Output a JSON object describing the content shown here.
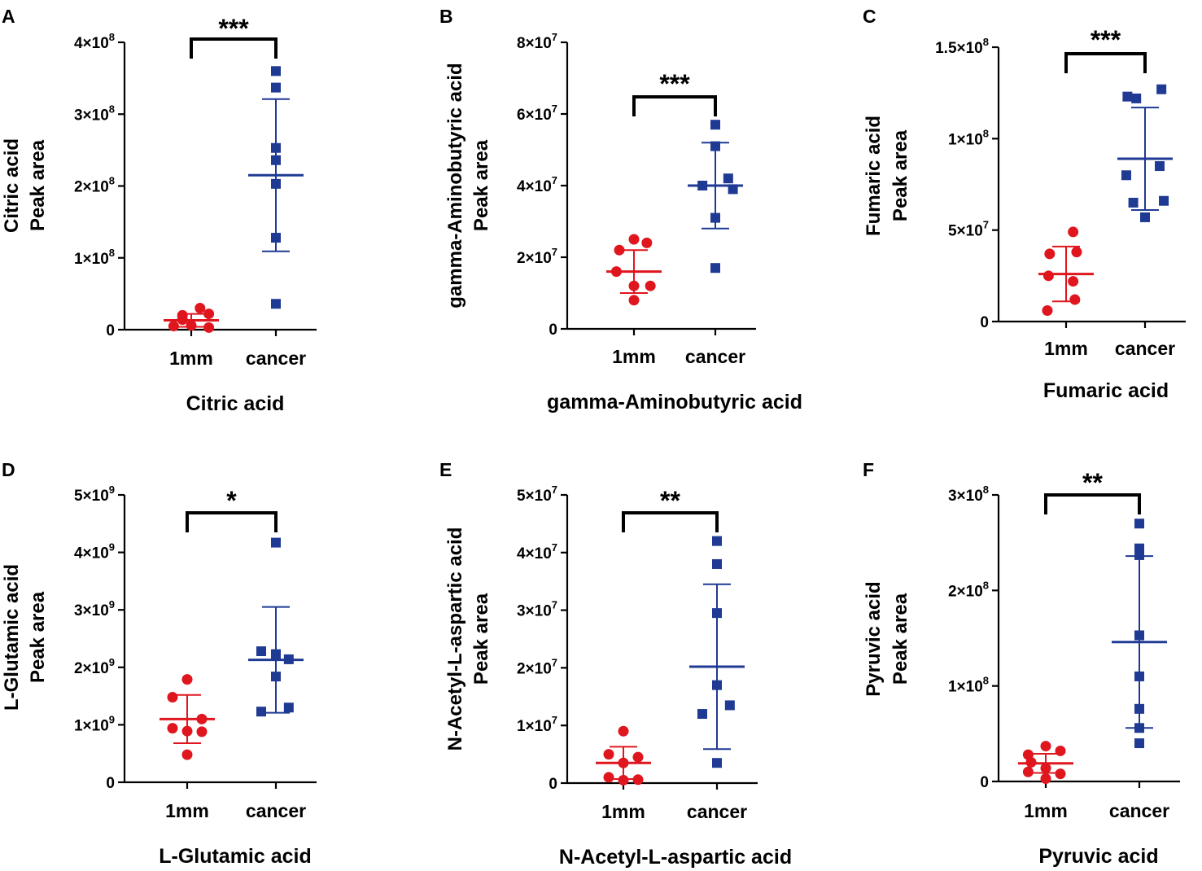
{
  "figure": {
    "panel_count": 6
  },
  "colors": {
    "group_1mm": "#e0161e",
    "group_cancer": "#1f3a93",
    "axis": "#000000"
  },
  "chart_data": [
    {
      "panel": "A",
      "type": "scatter",
      "title": "Citric acid",
      "ylabel_line1": "Citric acid",
      "ylabel_line2": "Peak area",
      "categories": [
        "1mm",
        "cancer"
      ],
      "ylim": [
        0,
        400000000
      ],
      "yticks": [
        {
          "value": 0,
          "base": "0",
          "exp": ""
        },
        {
          "value": 100000000,
          "base": "1×10",
          "exp": "8"
        },
        {
          "value": 200000000,
          "base": "2×10",
          "exp": "8"
        },
        {
          "value": 300000000,
          "base": "3×10",
          "exp": "8"
        },
        {
          "value": 400000000,
          "base": "4×10",
          "exp": "8"
        }
      ],
      "significance": "***",
      "series": [
        {
          "name": "1mm",
          "mean": 13000000,
          "sd": 9000000,
          "points": [
            {
              "x": -0.3,
              "y": 5000000
            },
            {
              "x": -0.15,
              "y": 14000000
            },
            {
              "x": -0.15,
              "y": 20000000
            },
            {
              "x": 0.0,
              "y": 6000000
            },
            {
              "x": 0.15,
              "y": 30000000
            },
            {
              "x": 0.3,
              "y": 22000000
            },
            {
              "x": 0.3,
              "y": 3000000
            }
          ]
        },
        {
          "name": "cancer",
          "mean": 215000000,
          "sd": 106000000,
          "points": [
            {
              "x": 0,
              "y": 360000000
            },
            {
              "x": 0,
              "y": 337000000
            },
            {
              "x": 0,
              "y": 253000000
            },
            {
              "x": 0,
              "y": 236000000
            },
            {
              "x": 0,
              "y": 203000000
            },
            {
              "x": 0,
              "y": 128000000
            },
            {
              "x": 0,
              "y": 36000000
            }
          ]
        }
      ]
    },
    {
      "panel": "B",
      "type": "scatter",
      "title": "gamma-Aminobutyric acid",
      "ylabel_line1": "gamma-Aminobutyric acid",
      "ylabel_line2": "Peak area",
      "categories": [
        "1mm",
        "cancer"
      ],
      "ylim": [
        0,
        80000000
      ],
      "yticks": [
        {
          "value": 0,
          "base": "0",
          "exp": ""
        },
        {
          "value": 20000000,
          "base": "2×10",
          "exp": "7"
        },
        {
          "value": 40000000,
          "base": "4×10",
          "exp": "7"
        },
        {
          "value": 60000000,
          "base": "6×10",
          "exp": "7"
        },
        {
          "value": 80000000,
          "base": "8×10",
          "exp": "7"
        }
      ],
      "significance": "***",
      "series": [
        {
          "name": "1mm",
          "mean": 16000000,
          "sd": 6000000,
          "points": [
            {
              "x": -0.25,
              "y": 22000000
            },
            {
              "x": 0.0,
              "y": 25000000
            },
            {
              "x": 0.22,
              "y": 24000000
            },
            {
              "x": -0.3,
              "y": 16000000
            },
            {
              "x": 0.0,
              "y": 12000000
            },
            {
              "x": 0.28,
              "y": 12000000
            },
            {
              "x": 0.0,
              "y": 8000000
            }
          ]
        },
        {
          "name": "cancer",
          "mean": 40000000,
          "sd": 12000000,
          "points": [
            {
              "x": 0.0,
              "y": 57000000
            },
            {
              "x": 0.0,
              "y": 51000000
            },
            {
              "x": -0.22,
              "y": 40000000
            },
            {
              "x": 0.22,
              "y": 42000000
            },
            {
              "x": 0.3,
              "y": 39000000
            },
            {
              "x": 0.0,
              "y": 31000000
            },
            {
              "x": 0.0,
              "y": 17000000
            }
          ]
        }
      ]
    },
    {
      "panel": "C",
      "type": "scatter",
      "title": "Fumaric acid",
      "ylabel_line1": "Fumaric acid",
      "ylabel_line2": "Peak area",
      "categories": [
        "1mm",
        "cancer"
      ],
      "ylim": [
        0,
        150000000
      ],
      "yticks": [
        {
          "value": 0,
          "base": "0",
          "exp": ""
        },
        {
          "value": 50000000,
          "base": "5×10",
          "exp": "7"
        },
        {
          "value": 100000000,
          "base": "1×10",
          "exp": "8"
        },
        {
          "value": 150000000,
          "base": "1.5×10",
          "exp": "8"
        }
      ],
      "significance": "***",
      "series": [
        {
          "name": "1mm",
          "mean": 26000000,
          "sd": 15000000,
          "points": [
            {
              "x": 0.12,
              "y": 49000000
            },
            {
              "x": -0.28,
              "y": 37000000
            },
            {
              "x": 0.18,
              "y": 38000000
            },
            {
              "x": -0.3,
              "y": 25000000
            },
            {
              "x": 0.15,
              "y": 12000000
            },
            {
              "x": 0.12,
              "y": 22000000
            },
            {
              "x": -0.32,
              "y": 6000000
            }
          ]
        },
        {
          "name": "cancer",
          "mean": 89000000,
          "sd": 28000000,
          "points": [
            {
              "x": -0.3,
              "y": 123000000
            },
            {
              "x": 0.28,
              "y": 127000000
            },
            {
              "x": -0.15,
              "y": 122000000
            },
            {
              "x": 0.25,
              "y": 85000000
            },
            {
              "x": -0.32,
              "y": 80000000
            },
            {
              "x": 0.32,
              "y": 66000000
            },
            {
              "x": -0.2,
              "y": 65000000
            },
            {
              "x": 0.0,
              "y": 57000000
            }
          ]
        }
      ]
    },
    {
      "panel": "D",
      "type": "scatter",
      "title": "L-Glutamic acid",
      "ylabel_line1": "L-Glutamic acid",
      "ylabel_line2": "Peak area",
      "categories": [
        "1mm",
        "cancer"
      ],
      "ylim": [
        0,
        5000000000
      ],
      "yticks": [
        {
          "value": 0,
          "base": "0",
          "exp": ""
        },
        {
          "value": 1000000000,
          "base": "1×10",
          "exp": "9"
        },
        {
          "value": 2000000000,
          "base": "2×10",
          "exp": "9"
        },
        {
          "value": 3000000000,
          "base": "3×10",
          "exp": "9"
        },
        {
          "value": 4000000000,
          "base": "4×10",
          "exp": "9"
        },
        {
          "value": 5000000000,
          "base": "5×10",
          "exp": "9"
        }
      ],
      "significance": "*",
      "series": [
        {
          "name": "1mm",
          "mean": 1100000000,
          "sd": 420000000,
          "points": [
            {
              "x": 0.0,
              "y": 1790000000
            },
            {
              "x": -0.25,
              "y": 1480000000
            },
            {
              "x": 0.25,
              "y": 1100000000
            },
            {
              "x": -0.25,
              "y": 940000000
            },
            {
              "x": 0.0,
              "y": 890000000
            },
            {
              "x": 0.25,
              "y": 880000000
            },
            {
              "x": 0.0,
              "y": 480000000
            }
          ]
        },
        {
          "name": "cancer",
          "mean": 2130000000,
          "sd": 920000000,
          "points": [
            {
              "x": 0.0,
              "y": 4170000000
            },
            {
              "x": -0.25,
              "y": 2280000000
            },
            {
              "x": 0.0,
              "y": 2230000000
            },
            {
              "x": 0.22,
              "y": 2140000000
            },
            {
              "x": 0.0,
              "y": 1840000000
            },
            {
              "x": 0.22,
              "y": 1300000000
            },
            {
              "x": -0.25,
              "y": 1230000000
            }
          ]
        }
      ]
    },
    {
      "panel": "E",
      "type": "scatter",
      "title": "N-Acetyl-L-aspartic acid",
      "ylabel_line1": "N-Acetyl-L-aspartic acid",
      "ylabel_line2": "Peak area",
      "categories": [
        "1mm",
        "cancer"
      ],
      "ylim": [
        0,
        50000000
      ],
      "yticks": [
        {
          "value": 0,
          "base": "0",
          "exp": ""
        },
        {
          "value": 10000000,
          "base": "1×10",
          "exp": "7"
        },
        {
          "value": 20000000,
          "base": "2×10",
          "exp": "7"
        },
        {
          "value": 30000000,
          "base": "3×10",
          "exp": "7"
        },
        {
          "value": 40000000,
          "base": "4×10",
          "exp": "7"
        },
        {
          "value": 50000000,
          "base": "5×10",
          "exp": "7"
        }
      ],
      "significance": "**",
      "series": [
        {
          "name": "1mm",
          "mean": 3500000,
          "sd": 2800000,
          "points": [
            {
              "x": 0.0,
              "y": 9000000
            },
            {
              "x": -0.25,
              "y": 5000000
            },
            {
              "x": 0.25,
              "y": 4500000
            },
            {
              "x": 0.0,
              "y": 3500000
            },
            {
              "x": -0.25,
              "y": 1000000
            },
            {
              "x": 0.0,
              "y": 500000
            },
            {
              "x": 0.25,
              "y": 600000
            }
          ]
        },
        {
          "name": "cancer",
          "mean": 20200000,
          "sd": 14300000,
          "points": [
            {
              "x": 0.0,
              "y": 42000000
            },
            {
              "x": 0.0,
              "y": 38000000
            },
            {
              "x": 0.0,
              "y": 29500000
            },
            {
              "x": 0.0,
              "y": 17000000
            },
            {
              "x": 0.22,
              "y": 13500000
            },
            {
              "x": -0.25,
              "y": 12000000
            },
            {
              "x": 0.0,
              "y": 3500000
            }
          ]
        }
      ]
    },
    {
      "panel": "F",
      "type": "scatter",
      "title": "Pyruvic acid",
      "ylabel_line1": "Pyruvic acid",
      "ylabel_line2": "Peak area",
      "categories": [
        "1mm",
        "cancer"
      ],
      "ylim": [
        0,
        300000000
      ],
      "yticks": [
        {
          "value": 0,
          "base": "0",
          "exp": ""
        },
        {
          "value": 100000000,
          "base": "1×10",
          "exp": "8"
        },
        {
          "value": 200000000,
          "base": "2×10",
          "exp": "8"
        },
        {
          "value": 300000000,
          "base": "3×10",
          "exp": "8"
        }
      ],
      "significance": "**",
      "series": [
        {
          "name": "1mm",
          "mean": 19000000,
          "sd": 10000000,
          "points": [
            {
              "x": 0.0,
              "y": 37000000
            },
            {
              "x": -0.3,
              "y": 28000000
            },
            {
              "x": 0.25,
              "y": 32000000
            },
            {
              "x": -0.25,
              "y": 20000000
            },
            {
              "x": 0.0,
              "y": 14000000
            },
            {
              "x": -0.3,
              "y": 10000000
            },
            {
              "x": 0.25,
              "y": 8000000
            },
            {
              "x": 0.0,
              "y": 3000000
            }
          ]
        },
        {
          "name": "cancer",
          "mean": 146000000,
          "sd": 90000000,
          "points": [
            {
              "x": 0.0,
              "y": 270000000
            },
            {
              "x": 0.0,
              "y": 244000000
            },
            {
              "x": 0.0,
              "y": 237000000
            },
            {
              "x": 0.0,
              "y": 153000000
            },
            {
              "x": 0.0,
              "y": 110000000
            },
            {
              "x": 0.0,
              "y": 76000000
            },
            {
              "x": 0.0,
              "y": 56000000
            },
            {
              "x": 0.0,
              "y": 40000000
            }
          ]
        }
      ]
    }
  ]
}
